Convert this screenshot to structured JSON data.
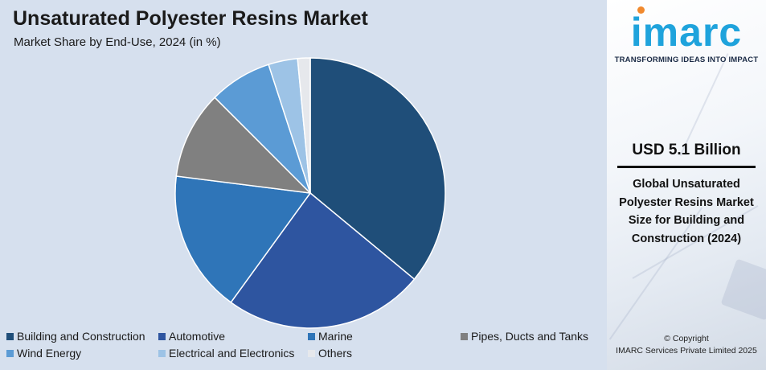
{
  "title": "Unsaturated Polyester Resins Market",
  "subtitle": "Market Share by End-Use, 2024 (in %)",
  "chart_data": {
    "type": "pie",
    "title": "Unsaturated Polyester Resins Market",
    "subtitle": "Market Share by End-Use, 2024 (in %)",
    "start_angle_deg": 0,
    "direction": "clockwise",
    "categories": [
      "Building and Construction",
      "Automotive",
      "Marine",
      "Pipes, Ducts and Tanks",
      "Wind Energy",
      "Electrical and Electronics",
      "Others"
    ],
    "values": [
      36,
      24,
      17,
      10.5,
      7.5,
      3.5,
      1.5
    ],
    "colors": [
      "#1f4e79",
      "#2e55a0",
      "#2f75b8",
      "#808080",
      "#5b9bd5",
      "#9dc3e6",
      "#e6e8ec"
    ],
    "legend_position": "bottom"
  },
  "legend": [
    {
      "label": "Building and Construction",
      "color": "#1f4e79"
    },
    {
      "label": "Automotive",
      "color": "#2e55a0"
    },
    {
      "label": "Marine",
      "color": "#2f75b8"
    },
    {
      "label": "Pipes, Ducts and Tanks",
      "color": "#808080"
    },
    {
      "label": "Wind Energy",
      "color": "#5b9bd5"
    },
    {
      "label": "Electrical and Electronics",
      "color": "#9dc3e6"
    },
    {
      "label": "Others",
      "color": "#e6e8ec"
    }
  ],
  "sidebar": {
    "logo": "imarc",
    "tagline": "TRANSFORMING IDEAS INTO IMPACT",
    "value": "USD 5.1 Billion",
    "description": "Global Unsaturated Polyester Resins Market Size for Building and Construction (2024)",
    "copyright_line1": "© Copyright",
    "copyright_line2": "IMARC Services Private Limited 2025",
    "brand_color": "#1fa3dc",
    "accent_color": "#f1892d"
  }
}
